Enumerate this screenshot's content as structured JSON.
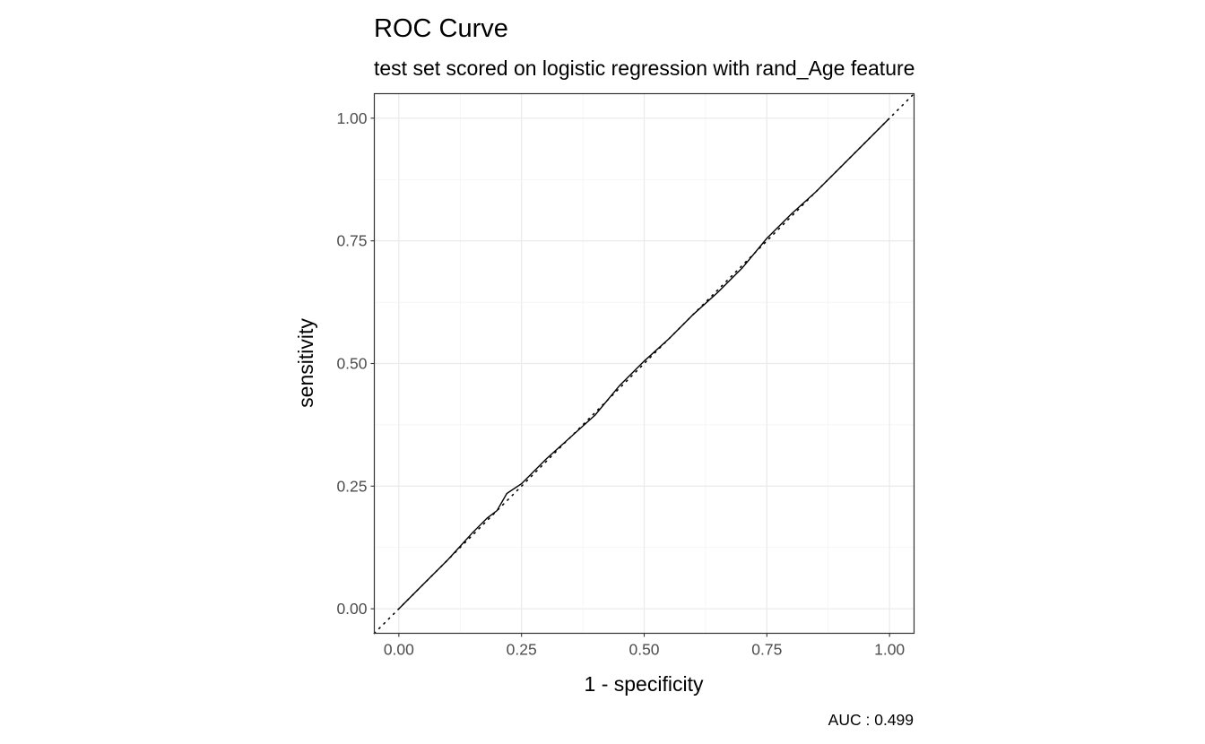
{
  "chart_data": {
    "type": "line",
    "title": "ROC Curve",
    "subtitle": "test set scored on logistic regression with rand_Age feature",
    "xlabel": "1 - specificity",
    "ylabel": "sensitivity",
    "caption": "AUC : 0.499",
    "xlim": [
      -0.05,
      1.05
    ],
    "ylim": [
      -0.05,
      1.05
    ],
    "xticks": [
      "0.00",
      "0.25",
      "0.50",
      "0.75",
      "1.00"
    ],
    "yticks": [
      "0.00",
      "0.25",
      "0.50",
      "0.75",
      "1.00"
    ],
    "grid": true,
    "reference_line": {
      "style": "dotted",
      "from": [
        -0.05,
        -0.05
      ],
      "to": [
        1.05,
        1.05
      ]
    },
    "series": [
      {
        "x": [
          0,
          0.05,
          0.1,
          0.15,
          0.18,
          0.2,
          0.22,
          0.25,
          0.3,
          0.35,
          0.4,
          0.45,
          0.5,
          0.55,
          0.6,
          0.65,
          0.7,
          0.75,
          0.8,
          0.85,
          0.9,
          0.95,
          1
        ],
        "y": [
          0,
          0.05,
          0.1,
          0.155,
          0.185,
          0.2,
          0.235,
          0.255,
          0.305,
          0.35,
          0.395,
          0.455,
          0.505,
          0.55,
          0.6,
          0.645,
          0.695,
          0.755,
          0.805,
          0.85,
          0.9,
          0.95,
          1
        ],
        "color": "#000000"
      }
    ]
  }
}
